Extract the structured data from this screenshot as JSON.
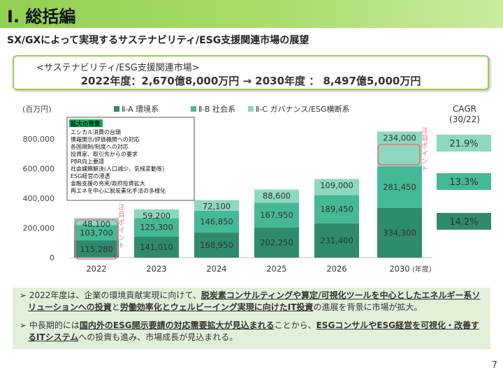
{
  "header": {
    "title": "Ⅰ. 総括編"
  },
  "subtitle": "SX/GXによって実現するサステナビリティ/ESG支援関連市場の展望",
  "market_box": {
    "label": "<サステナビリティ/ESG支援関連市場>",
    "value": "2022年度：2,670億8,000万円 → 2030年度 ： 8,497億5,000万円"
  },
  "chart_data": {
    "type": "bar",
    "stacked": true,
    "unit_label": "(百万円)",
    "categories": [
      "2022",
      "2023",
      "2024",
      "2025",
      "2026",
      "2030"
    ],
    "x_suffix": "(年度)",
    "ylim": [
      0,
      800000
    ],
    "yticks": [
      "0",
      "200,000",
      "400,000",
      "600,000",
      "800,000"
    ],
    "series": [
      {
        "name": "Ⅱ-A 環境系",
        "color": "#2e8b6d",
        "values": [
          115280,
          141010,
          168950,
          202250,
          231400,
          334300
        ],
        "labels": [
          "115,280",
          "141,010",
          "168,950",
          "202,250",
          "231,400",
          "334,300"
        ]
      },
      {
        "name": "Ⅱ-B 社会系",
        "color": "#45b898",
        "values": [
          103700,
          125300,
          146850,
          167950,
          189450,
          281450
        ],
        "labels": [
          "103,700",
          "125,300",
          "146,850",
          "167,950",
          "189,450",
          "281,450"
        ]
      },
      {
        "name": "Ⅱ-C ガバナンス/ESG横断系",
        "color": "#8ed8c0",
        "values": [
          48100,
          59200,
          72100,
          88600,
          109000,
          234000
        ],
        "labels": [
          "48,100",
          "59,200",
          "72,100",
          "88,600",
          "109,000",
          "234,000"
        ]
      }
    ],
    "callouts": [
      "注目ポイント",
      "注目ポイント"
    ],
    "cagr": {
      "title": "CAGR",
      "period": "(30/22)",
      "values": [
        "21.9%",
        "13.3%",
        "14.2%"
      ],
      "colors": [
        "#8ed8c0",
        "#45b898",
        "#2e8b6d"
      ]
    },
    "legend_box": {
      "heading": "拡大の背景",
      "heading_color": "#00b050",
      "lines": [
        "エシカル消費の台頭",
        "情報開示/評価機関への対応",
        "各国規制/制度への対応",
        "投資家、取引先からの要求",
        "PBR向上要請",
        "社会課題解決(人口減少、気候変動等)",
        "ESG経営の浸透",
        "金融支援の充実/政府投資拡大",
        "再エネを中心に脱炭素化手法の多様化"
      ]
    }
  },
  "bullets": {
    "b1": [
      {
        "t": "2022年度は、企業の環境貢献実現に向けて、",
        "u": false
      },
      {
        "t": "脱炭素コンサルティングや算定/可視化ツールを中心としたエネルギー系ソリューションへの投資",
        "u": true
      },
      {
        "t": "と",
        "u": false
      },
      {
        "t": "労働効率化とウェルビーイング実現に向けたIT投資",
        "u": true
      },
      {
        "t": "の進展を背景に市場が拡大。",
        "u": false
      }
    ],
    "b2": [
      {
        "t": "中長期的には",
        "u": false
      },
      {
        "t": "国内外のESG開示要請の対応需要拡大が見込まれる",
        "u": true
      },
      {
        "t": "ことから、",
        "u": false
      },
      {
        "t": "ESGコンサルやESG経営を可視化・改善するITシステム",
        "u": true
      },
      {
        "t": "への投資も進み、市場成長が見込まれる。",
        "u": false
      }
    ]
  },
  "page_number": "7"
}
